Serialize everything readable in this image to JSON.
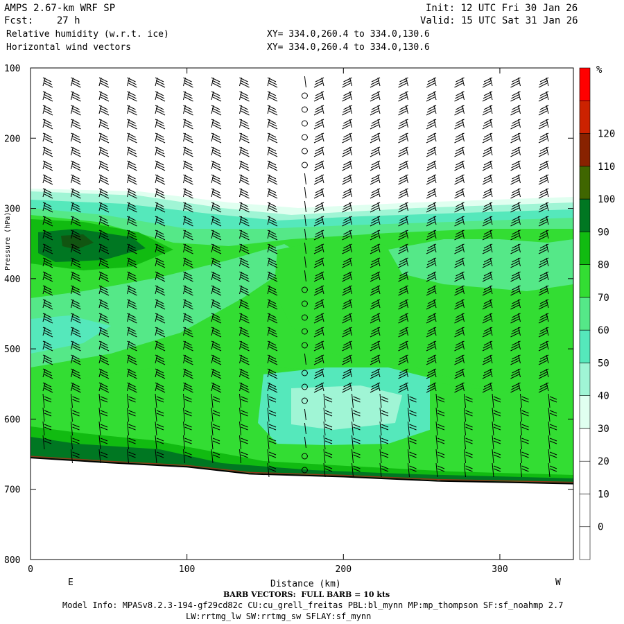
{
  "header": {
    "title": "AMPS 2.67-km WRF SP",
    "forecast": "Fcst:    27 h",
    "init": "Init: 12 UTC Fri 30 Jan 26",
    "valid": "Valid: 15 UTC Sat 31 Jan 26",
    "field1": "Relative humidity (w.r.t. ice)",
    "field2": "Horizontal wind vectors",
    "xy1": "XY= 334.0,260.4 to 334.0,130.6",
    "xy2": "XY= 334.0,260.4 to 334.0,130.6"
  },
  "chart_data": {
    "type": "heatmap",
    "title": "Relative humidity (w.r.t. ice)",
    "xlabel": "Distance (km)",
    "ylabel": "Pressure (hPa)",
    "xlim": [
      0,
      347
    ],
    "ylim": [
      800,
      100
    ],
    "x_ticks": [
      0,
      100,
      200,
      300
    ],
    "y_ticks": [
      100,
      200,
      300,
      400,
      500,
      600,
      700,
      800
    ],
    "x_end_labels": {
      "left": "E",
      "right": "W"
    },
    "colorbar": {
      "unit": "%",
      "levels": [
        0,
        10,
        20,
        30,
        40,
        50,
        60,
        70,
        80,
        90,
        100,
        110,
        120
      ],
      "colors": [
        "#ffffff",
        "#ffffff",
        "#ffffff",
        "#ffffff",
        "#e0fff0",
        "#a0f5d5",
        "#55e8bb",
        "#55e888",
        "#33dd33",
        "#11bb11",
        "#007722",
        "#3f6600",
        "#882200",
        "#cc2200",
        "#ff0000"
      ]
    },
    "terrain_pressure": [
      {
        "x": 0,
        "p": 655
      },
      {
        "x": 50,
        "p": 662
      },
      {
        "x": 100,
        "p": 668
      },
      {
        "x": 140,
        "p": 678
      },
      {
        "x": 200,
        "p": 682
      },
      {
        "x": 260,
        "p": 688
      },
      {
        "x": 347,
        "p": 692
      }
    ],
    "rh_regions": [
      {
        "level": 80,
        "region": "moist layer",
        "p_top": 290,
        "p_bottom": 660
      },
      {
        "level": 90,
        "region": "upper-left maximum",
        "x": [
          0,
          60
        ],
        "p": [
          330,
          390
        ]
      },
      {
        "level": 40,
        "region": "dry slot",
        "x": [
          170,
          250
        ],
        "p": [
          540,
          650
        ]
      }
    ],
    "barb_vectors": "FULL BARB = 10 kts"
  },
  "footer": {
    "barb_note": "BARB VECTORS:  FULL BARB = 10 kts",
    "model_info": "Model Info: MPASv8.2.3-194-gf29cd82c CU:cu_grell_freitas PBL:bl_mynn MP:mp_thompson SF:sf_noahmp 2.7",
    "physics": "LW:rrtmg_lw SW:rrtmg_sw SFLAY:sf_mynn"
  }
}
